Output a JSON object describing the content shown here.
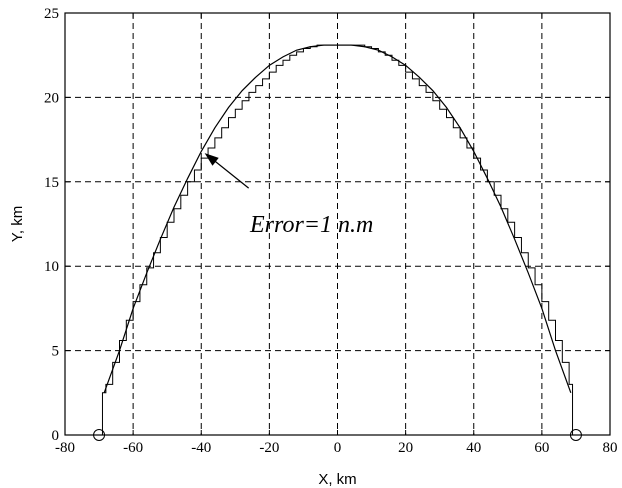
{
  "chart_data": {
    "type": "line",
    "title": "",
    "xlabel": "X, km",
    "ylabel": "Y, km",
    "xlim": [
      -80,
      80
    ],
    "ylim": [
      0,
      25
    ],
    "xticks": [
      -80,
      -60,
      -40,
      -20,
      0,
      20,
      40,
      60,
      80
    ],
    "yticks": [
      0,
      5,
      10,
      15,
      20,
      25
    ],
    "grid": true,
    "series": [
      {
        "style": "smooth",
        "x": [
          -68.5,
          -64,
          -60,
          -56,
          -52,
          -48,
          -44,
          -40,
          -36,
          -32,
          -28,
          -24,
          -20,
          -16,
          -12,
          -8,
          -4,
          0,
          4,
          8,
          12,
          16,
          20,
          24,
          28,
          32,
          36,
          40,
          44,
          48,
          52,
          56,
          60,
          64,
          68.5
        ],
        "y": [
          2.5,
          5.0,
          7.5,
          9.6,
          11.6,
          13.5,
          15.2,
          16.8,
          18.2,
          19.4,
          20.4,
          21.2,
          21.9,
          22.4,
          22.8,
          23.0,
          23.1,
          23.1,
          23.1,
          23.0,
          22.8,
          22.4,
          21.9,
          21.2,
          20.4,
          19.4,
          18.2,
          16.8,
          15.2,
          13.5,
          11.6,
          9.6,
          7.5,
          5.0,
          2.5
        ]
      },
      {
        "style": "step",
        "x": [
          -69,
          -69,
          -68,
          -66,
          -64,
          -62,
          -60,
          -58,
          -56,
          -54,
          -52,
          -50,
          -48,
          -46,
          -44,
          -42,
          -40,
          -38,
          -36,
          -34,
          -32,
          -30,
          -28,
          -26,
          -24,
          -22,
          -20,
          -18,
          -16,
          -14,
          -12,
          -10,
          -8,
          -6,
          -4,
          -2,
          0,
          2,
          4,
          6,
          8,
          10,
          12,
          14,
          16,
          18,
          20,
          22,
          24,
          26,
          28,
          30,
          32,
          34,
          36,
          38,
          40,
          42,
          44,
          46,
          48,
          50,
          52,
          54,
          56,
          58,
          60,
          62,
          64,
          66,
          68,
          69,
          69
        ],
        "y": [
          0,
          2.5,
          3.0,
          4.3,
          5.6,
          6.8,
          7.9,
          8.9,
          9.9,
          10.8,
          11.7,
          12.6,
          13.4,
          14.2,
          15.0,
          15.7,
          16.4,
          17.0,
          17.6,
          18.2,
          18.8,
          19.3,
          19.8,
          20.3,
          20.7,
          21.1,
          21.5,
          21.9,
          22.2,
          22.5,
          22.7,
          22.9,
          23.0,
          23.1,
          23.1,
          23.1,
          23.1,
          23.1,
          23.1,
          23.1,
          23.0,
          22.9,
          22.7,
          22.5,
          22.2,
          21.9,
          21.5,
          21.1,
          20.7,
          20.3,
          19.8,
          19.3,
          18.8,
          18.2,
          17.6,
          17.0,
          16.4,
          15.7,
          15.0,
          14.2,
          13.4,
          12.6,
          11.7,
          10.8,
          9.9,
          8.9,
          7.9,
          6.8,
          5.6,
          4.3,
          3.0,
          2.5,
          0
        ]
      }
    ],
    "markers": [
      {
        "x": -70,
        "y": 0,
        "shape": "circle"
      },
      {
        "x": 70,
        "y": 0,
        "shape": "circle"
      }
    ],
    "annotations": [
      {
        "text": "Error=1 n.m",
        "arrow_to": {
          "x": -39,
          "y": 16.7
        }
      }
    ]
  }
}
